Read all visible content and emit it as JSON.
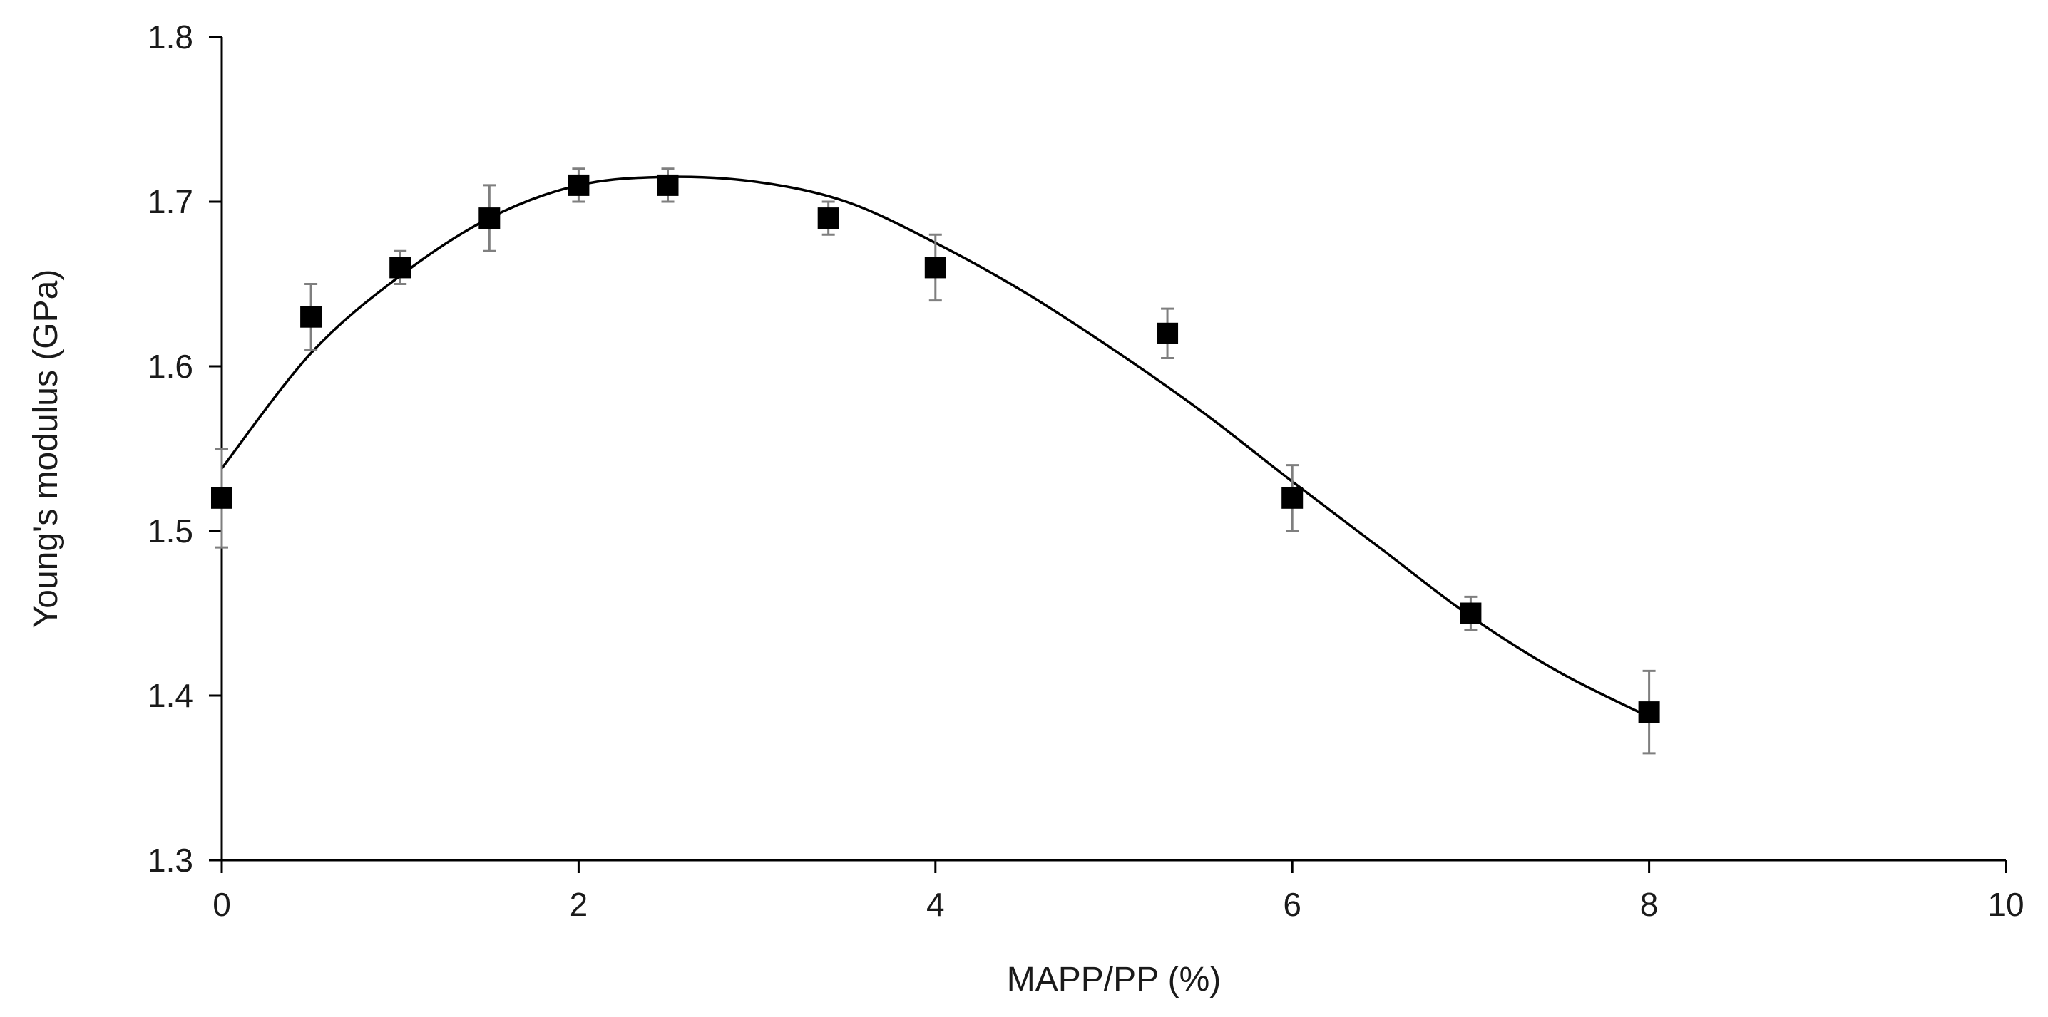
{
  "chart_data": {
    "type": "scatter",
    "title": "",
    "xlabel": "MAPP/PP (%)",
    "ylabel": "Young's modulus (GPa)",
    "xlim": [
      0,
      10
    ],
    "ylim": [
      1.3,
      1.8
    ],
    "x_ticks": [
      0,
      2,
      4,
      6,
      8,
      10
    ],
    "y_ticks": [
      1.3,
      1.4,
      1.5,
      1.6,
      1.7,
      1.8
    ],
    "x_tick_labels": [
      "0",
      "2",
      "4",
      "6",
      "8",
      "10"
    ],
    "y_tick_labels": [
      "1.3",
      "1.4",
      "1.5",
      "1.6",
      "1.7",
      "1.8"
    ],
    "grid": false,
    "legend": "none",
    "marker": "square",
    "marker_color": "#000000",
    "errorbar_color": "#7f7f7f",
    "trendline": "polynomial",
    "trendline_color": "#000000",
    "series": [
      {
        "x": [
          0,
          0.5,
          1,
          1.5,
          2,
          2.5,
          3.4,
          4,
          5.3,
          6,
          7,
          8
        ],
        "y": [
          1.52,
          1.63,
          1.66,
          1.69,
          1.71,
          1.71,
          1.69,
          1.66,
          1.62,
          1.52,
          1.45,
          1.39
        ],
        "error": [
          0.03,
          0.02,
          0.01,
          0.02,
          0.01,
          0.01,
          0.01,
          0.02,
          0.015,
          0.02,
          0.01,
          0.025
        ]
      }
    ],
    "trendline_points": {
      "x": [
        0,
        0.5,
        1,
        1.5,
        2,
        2.5,
        3,
        3.5,
        4,
        4.5,
        5,
        5.5,
        6,
        6.5,
        7,
        7.5,
        8
      ],
      "y": [
        1.538,
        1.608,
        1.655,
        1.69,
        1.71,
        1.715,
        1.712,
        1.7,
        1.675,
        1.645,
        1.61,
        1.572,
        1.53,
        1.489,
        1.448,
        1.414,
        1.387
      ]
    }
  }
}
